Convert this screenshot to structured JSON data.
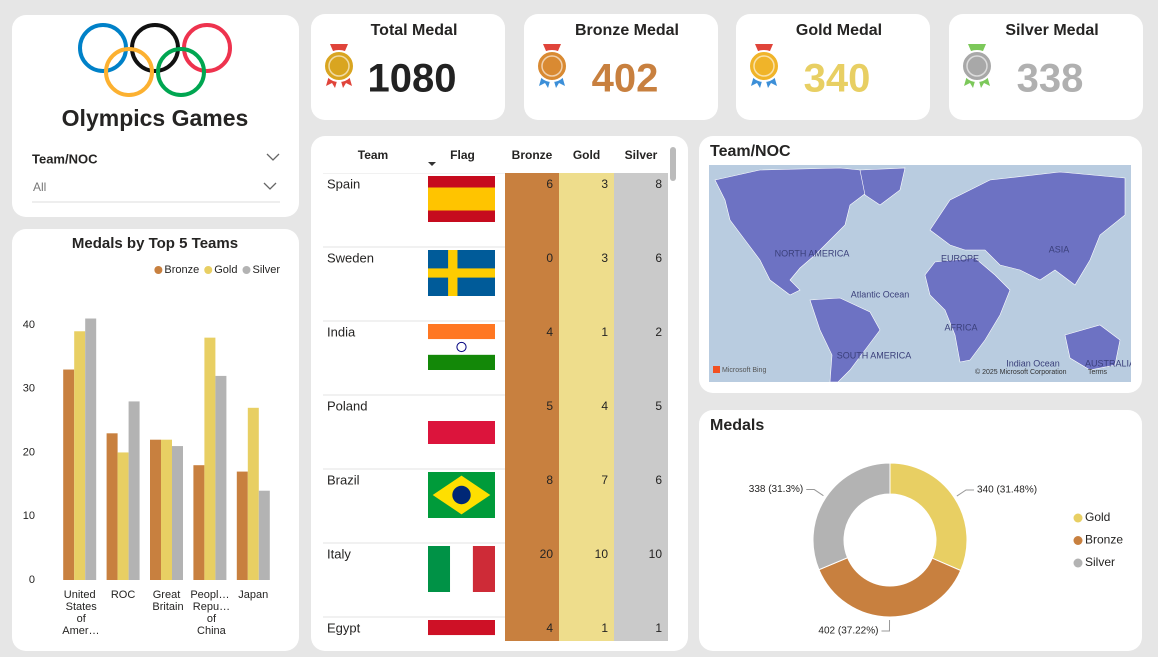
{
  "header": {
    "title": "Olympics Games"
  },
  "slicer": {
    "label": "Team/NOC",
    "value": "All"
  },
  "cards": [
    {
      "title": "Total Medal",
      "value": 1080,
      "color": "#222222",
      "icon": "#d9a520"
    },
    {
      "title": "Bronze Medal",
      "value": 402,
      "color": "#c8803f",
      "icon": "#d98a32"
    },
    {
      "title": "Gold Medal",
      "value": 340,
      "color": "#e8cf63",
      "icon": "#f0b429"
    },
    {
      "title": "Silver Medal",
      "value": 338,
      "color": "#b0b0b0",
      "icon": "#a8a8a8"
    }
  ],
  "table": {
    "headers": [
      "Team",
      "Flag",
      "Bronze",
      "Gold",
      "Silver"
    ],
    "rows": [
      [
        "Spain",
        6,
        3,
        8
      ],
      [
        "Sweden",
        0,
        3,
        6
      ],
      [
        "India",
        4,
        1,
        2
      ],
      [
        "Poland",
        5,
        4,
        5
      ],
      [
        "Brazil",
        8,
        7,
        6
      ],
      [
        "Italy",
        20,
        10,
        10
      ],
      [
        "Egypt",
        4,
        1,
        1
      ]
    ]
  },
  "map": {
    "title": "Team/NOC",
    "labels": [
      "NORTH AMERICA",
      "Atlantic Ocean",
      "EUROPE",
      "ASIA",
      "AFRICA",
      "SOUTH AMERICA",
      "Indian Ocean",
      "AUSTRALIA"
    ],
    "attribution": [
      "Microsoft Bing",
      "© 2025 Microsoft Corporation",
      "Terms"
    ]
  },
  "chart_data": [
    {
      "type": "bar",
      "title": "Medals by Top 5 Teams",
      "categories": [
        "United States of Amer…",
        "ROC",
        "Great Britain",
        "Peopl… Repu… of China",
        "Japan"
      ],
      "series": [
        {
          "name": "Bronze",
          "color": "#c8803f",
          "values": [
            33,
            23,
            22,
            18,
            17
          ]
        },
        {
          "name": "Gold",
          "color": "#e8cf63",
          "values": [
            39,
            20,
            22,
            38,
            27
          ]
        },
        {
          "name": "Silver",
          "color": "#b3b3b3",
          "values": [
            41,
            28,
            21,
            32,
            14
          ]
        }
      ],
      "ylim": [
        0,
        45
      ],
      "yticks": [
        0,
        10,
        20,
        30,
        40
      ],
      "legend": "top-right"
    },
    {
      "type": "pie",
      "title": "Medals",
      "donut": true,
      "categories": [
        "Gold",
        "Bronze",
        "Silver"
      ],
      "values": [
        340,
        402,
        338
      ],
      "value_labels": [
        "340 (31.48%)",
        "402 (37.22%)",
        "338 (31.3%)"
      ],
      "colors": [
        "#e8cf63",
        "#c8803f",
        "#b3b3b3"
      ],
      "legend": "right"
    }
  ]
}
